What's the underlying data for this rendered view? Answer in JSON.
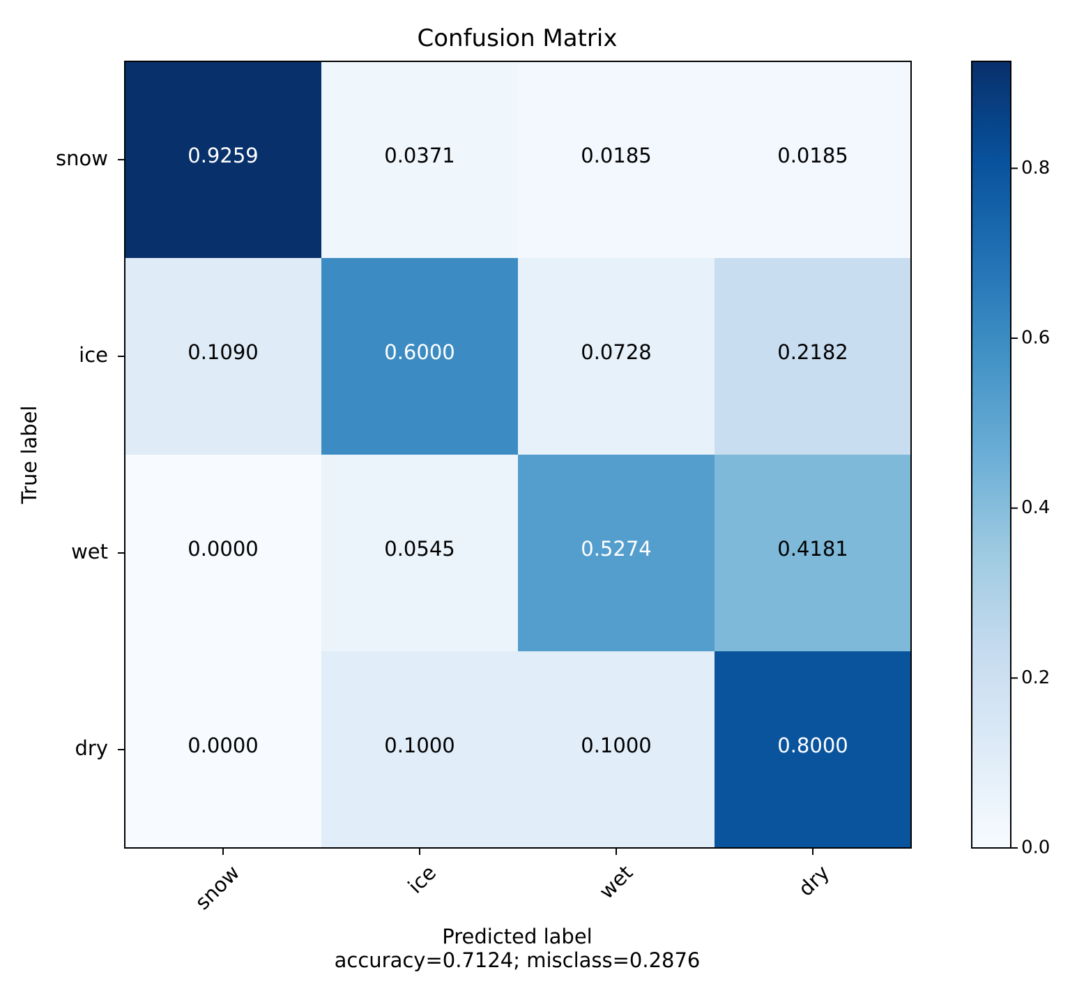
{
  "chart_data": {
    "type": "heatmap",
    "title": "Confusion Matrix",
    "xlabel": "Predicted label",
    "xlabel_sub": "accuracy=0.7124; misclass=0.2876",
    "ylabel": "True label",
    "x_categories": [
      "snow",
      "ice",
      "wet",
      "dry"
    ],
    "y_categories": [
      "snow",
      "ice",
      "wet",
      "dry"
    ],
    "values": [
      [
        0.9259,
        0.0371,
        0.0185,
        0.0185
      ],
      [
        0.109,
        0.6,
        0.0728,
        0.2182
      ],
      [
        0.0,
        0.0545,
        0.5274,
        0.4181
      ],
      [
        0.0,
        0.1,
        0.1,
        0.8
      ]
    ],
    "cell_labels": [
      [
        "0.9259",
        "0.0371",
        "0.0185",
        "0.0185"
      ],
      [
        "0.1090",
        "0.6000",
        "0.0728",
        "0.2182"
      ],
      [
        "0.0000",
        "0.0545",
        "0.5274",
        "0.4181"
      ],
      [
        "0.0000",
        "0.1000",
        "0.1000",
        "0.8000"
      ]
    ],
    "colormap": "Blues",
    "color_range": [
      0.0,
      0.9259
    ],
    "colorbar_ticks": [
      0.0,
      0.2,
      0.4,
      0.6,
      0.8
    ],
    "colorbar_tick_labels": [
      "0.0",
      "0.2",
      "0.4",
      "0.6",
      "0.8"
    ],
    "accuracy": 0.7124,
    "misclass": 0.2876
  }
}
